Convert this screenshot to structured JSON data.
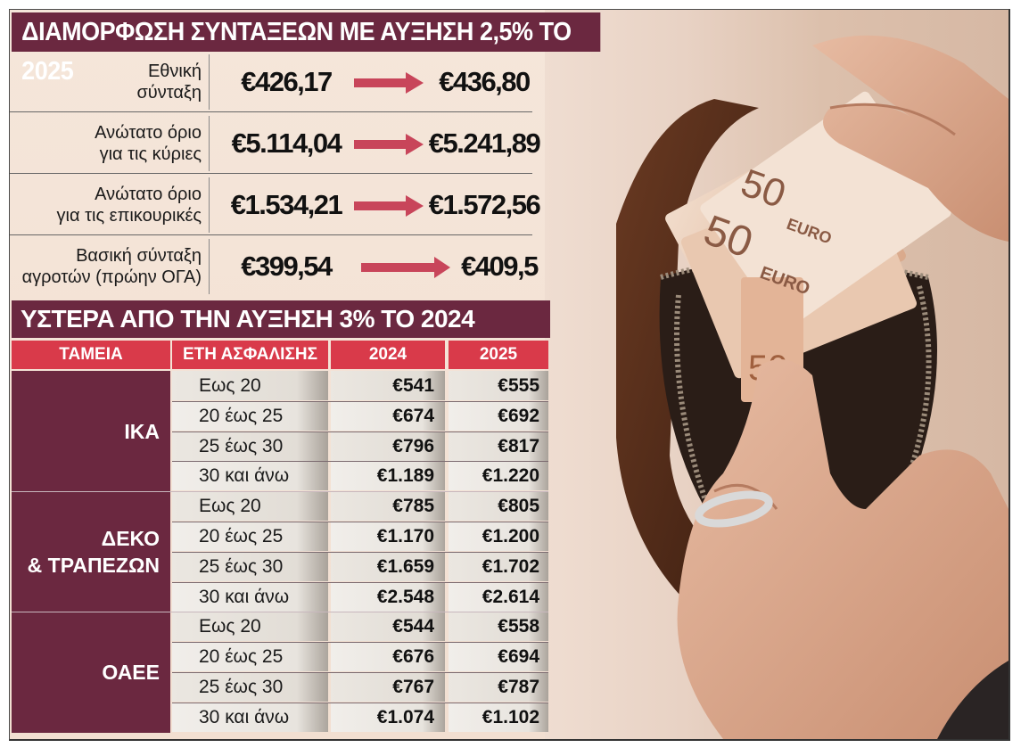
{
  "colors": {
    "title_bg": "#6b2840",
    "header_bg": "#d93a4a",
    "arrow": "#c8455a"
  },
  "section1": {
    "title": "ΔΙΑΜΟΡΦΩΣΗ ΣΥΝΤΑΞΕΩΝ ΜΕ ΑΥΞΗΣΗ 2,5% ΤΟ 2025",
    "rows": [
      {
        "label_line1": "Εθνική",
        "label_line2": "σύνταξη",
        "from": "€426,17",
        "to": "€436,80"
      },
      {
        "label_line1": "Ανώτατο όριο",
        "label_line2": "για τις κύριες",
        "from": "€5.114,04",
        "to": "€5.241,89"
      },
      {
        "label_line1": "Ανώτατο όριο",
        "label_line2": "για τις επικουρικές",
        "from": "€1.534,21",
        "to": "€1.572,56"
      },
      {
        "label_line1": "Βασική σύνταξη",
        "label_line2": "αγροτών (πρώην ΟΓΑ)",
        "from": "€399,54",
        "to": "€409,5"
      }
    ]
  },
  "section2": {
    "title": "ΥΣΤΕΡΑ ΑΠΟ ΤΗΝ ΑΥΞΗΣΗ 3% ΤΟ 2024",
    "headers": {
      "fund": "ΤΑΜΕΙΑ",
      "years": "ΕΤΗ ΑΣΦΑΛΙΣΗΣ",
      "y2024": "2024",
      "y2025": "2025"
    },
    "funds": [
      {
        "name_line1": "ΙΚΑ",
        "name_line2": "",
        "rows": [
          {
            "years": "Εως 20",
            "v2024": "€541",
            "v2025": "€555"
          },
          {
            "years": "20 έως 25",
            "v2024": "€674",
            "v2025": "€692"
          },
          {
            "years": "25 έως 30",
            "v2024": "€796",
            "v2025": "€817"
          },
          {
            "years": "30 και άνω",
            "v2024": "€1.189",
            "v2025": "€1.220"
          }
        ]
      },
      {
        "name_line1": "ΔΕΚΟ",
        "name_line2": "& ΤΡΑΠΕΖΩΝ",
        "rows": [
          {
            "years": "Εως 20",
            "v2024": "€785",
            "v2025": "€805"
          },
          {
            "years": "20 έως 25",
            "v2024": "€1.170",
            "v2025": "€1.200"
          },
          {
            "years": "25 έως 30",
            "v2024": "€1.659",
            "v2025": "€1.702"
          },
          {
            "years": "30 και άνω",
            "v2024": "€2.548",
            "v2025": "€2.614"
          }
        ]
      },
      {
        "name_line1": "ΟΑΕΕ",
        "name_line2": "",
        "rows": [
          {
            "years": "Εως 20",
            "v2024": "€544",
            "v2025": "€558"
          },
          {
            "years": "20 έως 25",
            "v2024": "€676",
            "v2025": "€694"
          },
          {
            "years": "25 έως 30",
            "v2024": "€767",
            "v2025": "€787"
          },
          {
            "years": "30 και άνω",
            "v2024": "€1.074",
            "v2025": "€1.102"
          }
        ]
      }
    ]
  },
  "photo": {
    "banknote_text_1": "50",
    "banknote_text_2": "EURO",
    "banknote_text_3": "50",
    "banknote_text_4": "EURO",
    "banknote_text_5": "50"
  },
  "chart_data": {
    "type": "table",
    "tables": [
      {
        "title": "ΔΙΑΜΟΡΦΩΣΗ ΣΥΝΤΑΞΕΩΝ ΜΕ ΑΥΞΗΣΗ 2,5% ΤΟ 2025",
        "columns": [
          "",
          "from",
          "to"
        ],
        "rows": [
          [
            "Εθνική σύνταξη",
            426.17,
            436.8
          ],
          [
            "Ανώτατο όριο για τις κύριες",
            5114.04,
            5241.89
          ],
          [
            "Ανώτατο όριο για τις επικουρικές",
            1534.21,
            1572.56
          ],
          [
            "Βασική σύνταξη αγροτών (πρώην ΟΓΑ)",
            399.54,
            409.5
          ]
        ]
      },
      {
        "title": "ΥΣΤΕΡΑ ΑΠΟ ΤΗΝ ΑΥΞΗΣΗ 3% ΤΟ 2024",
        "columns": [
          "ΤΑΜΕΙΑ",
          "ΕΤΗ ΑΣΦΑΛΙΣΗΣ",
          "2024",
          "2025"
        ],
        "rows": [
          [
            "ΙΚΑ",
            "Εως 20",
            541,
            555
          ],
          [
            "ΙΚΑ",
            "20 έως 25",
            674,
            692
          ],
          [
            "ΙΚΑ",
            "25 έως 30",
            796,
            817
          ],
          [
            "ΙΚΑ",
            "30 και άνω",
            1189,
            1220
          ],
          [
            "ΔΕΚΟ & ΤΡΑΠΕΖΩΝ",
            "Εως 20",
            785,
            805
          ],
          [
            "ΔΕΚΟ & ΤΡΑΠΕΖΩΝ",
            "20 έως 25",
            1170,
            1200
          ],
          [
            "ΔΕΚΟ & ΤΡΑΠΕΖΩΝ",
            "25 έως 30",
            1659,
            1702
          ],
          [
            "ΔΕΚΟ & ΤΡΑΠΕΖΩΝ",
            "30 και άνω",
            2548,
            2614
          ],
          [
            "ΟΑΕΕ",
            "Εως 20",
            544,
            558
          ],
          [
            "ΟΑΕΕ",
            "20 έως 25",
            676,
            694
          ],
          [
            "ΟΑΕΕ",
            "25 έως 30",
            767,
            787
          ],
          [
            "ΟΑΕΕ",
            "30 και άνω",
            1074,
            1102
          ]
        ]
      }
    ]
  }
}
